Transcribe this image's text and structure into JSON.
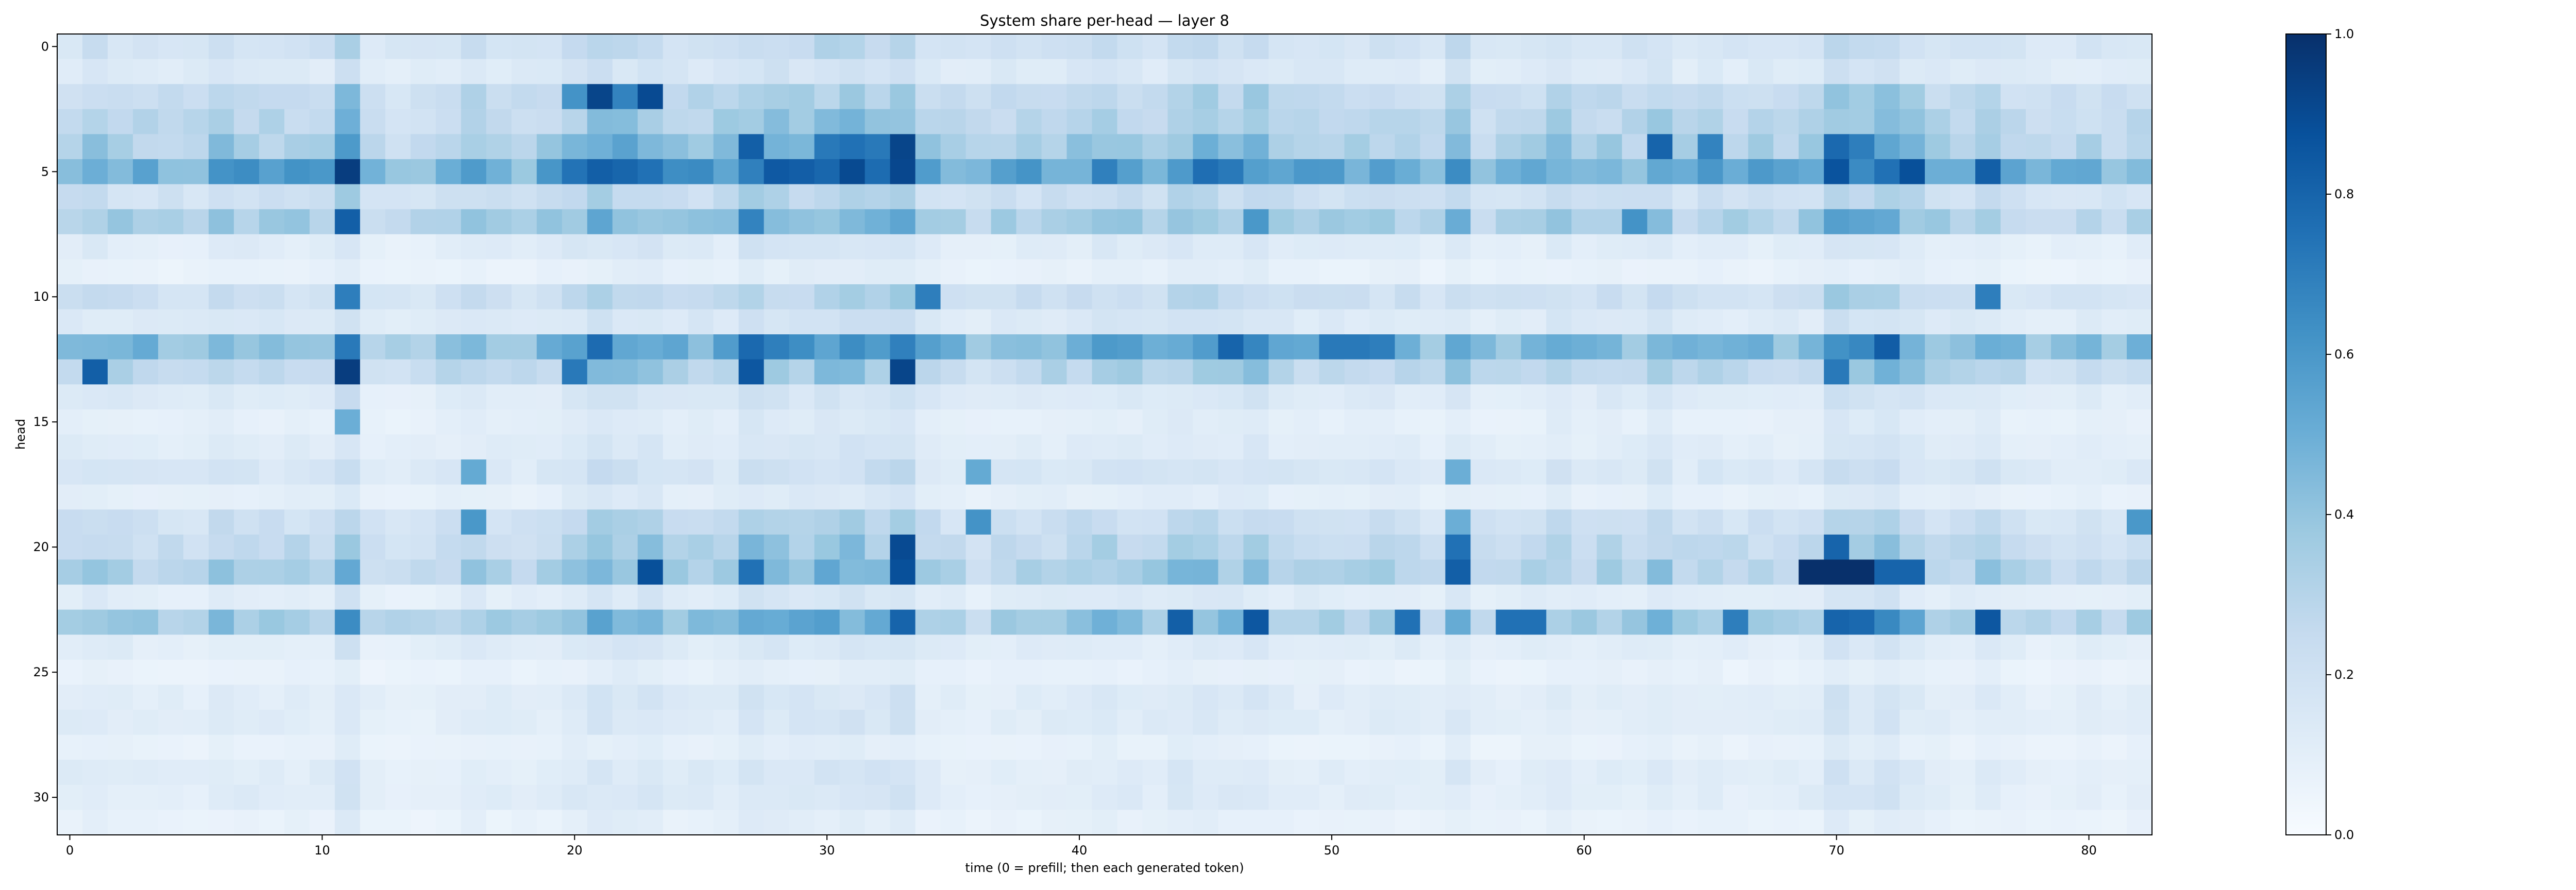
{
  "chart_data": {
    "type": "heatmap",
    "title": "System share per-head — layer 8",
    "xlabel": "time (0 = prefill; then each generated token)",
    "ylabel": "head",
    "x_range": [
      0,
      82
    ],
    "y_range": [
      0,
      31
    ],
    "x_ticks": [
      0,
      10,
      20,
      30,
      40,
      50,
      60,
      70,
      80
    ],
    "y_ticks": [
      0,
      5,
      10,
      15,
      20,
      25,
      30
    ],
    "colorbar": {
      "min": 0.0,
      "max": 1.0,
      "ticks": [
        "0.0",
        "0.2",
        "0.4",
        "0.6",
        "0.8",
        "1.0"
      ],
      "colormap": "Blues"
    },
    "head_base": [
      0.2,
      0.14,
      0.26,
      0.3,
      0.36,
      0.55,
      0.22,
      0.36,
      0.12,
      0.08,
      0.22,
      0.14,
      0.48,
      0.3,
      0.14,
      0.1,
      0.12,
      0.16,
      0.1,
      0.22,
      0.28,
      0.34,
      0.12,
      0.38,
      0.12,
      0.08,
      0.12,
      0.12,
      0.08,
      0.12,
      0.12,
      0.08
    ],
    "time_scale": [
      0.95,
      1.05,
      0.95,
      0.9,
      0.85,
      0.85,
      1.05,
      1.0,
      0.95,
      0.95,
      0.95,
      1.5,
      0.75,
      0.7,
      0.75,
      0.85,
      1.05,
      0.9,
      0.85,
      0.95,
      1.15,
      1.4,
      1.3,
      1.3,
      1.05,
      1.05,
      1.05,
      1.45,
      1.3,
      1.25,
      1.35,
      1.4,
      1.35,
      1.55,
      1.0,
      0.9,
      0.75,
      0.9,
      0.95,
      0.95,
      1.05,
      1.1,
      1.05,
      1.0,
      1.2,
      1.2,
      1.1,
      1.25,
      1.0,
      0.95,
      0.95,
      0.9,
      0.95,
      0.95,
      0.8,
      1.2,
      0.8,
      0.85,
      0.9,
      1.05,
      0.9,
      0.95,
      0.9,
      1.1,
      0.85,
      0.95,
      0.85,
      0.9,
      0.85,
      0.95,
      1.5,
      1.3,
      1.45,
      1.2,
      0.95,
      0.9,
      1.1,
      0.85,
      0.75,
      0.8,
      0.85,
      0.8,
      0.9
    ],
    "hotspots": [
      {
        "t": 21,
        "h": 2,
        "v": 0.92
      },
      {
        "t": 20,
        "h": 2,
        "v": 0.62
      },
      {
        "t": 22,
        "h": 2,
        "v": 0.68
      },
      {
        "t": 23,
        "h": 2,
        "v": 0.9
      },
      {
        "t": 33,
        "h": 4,
        "v": 0.92
      },
      {
        "t": 27,
        "h": 4,
        "v": 0.82
      },
      {
        "t": 30,
        "h": 4,
        "v": 0.72
      },
      {
        "t": 31,
        "h": 4,
        "v": 0.75
      },
      {
        "t": 32,
        "h": 4,
        "v": 0.72
      },
      {
        "t": 63,
        "h": 4,
        "v": 0.8
      },
      {
        "t": 65,
        "h": 4,
        "v": 0.68
      },
      {
        "t": 70,
        "h": 4,
        "v": 0.78
      },
      {
        "t": 71,
        "h": 4,
        "v": 0.7
      },
      {
        "t": 11,
        "h": 5,
        "v": 0.95
      },
      {
        "t": 21,
        "h": 5,
        "v": 0.82
      },
      {
        "t": 73,
        "h": 5,
        "v": 0.88
      },
      {
        "t": 72,
        "h": 5,
        "v": 0.75
      },
      {
        "t": 76,
        "h": 5,
        "v": 0.82
      },
      {
        "t": 71,
        "h": 5,
        "v": 0.65
      },
      {
        "t": 46,
        "h": 5,
        "v": 0.72
      },
      {
        "t": 11,
        "h": 7,
        "v": 0.82
      },
      {
        "t": 27,
        "h": 7,
        "v": 0.68
      },
      {
        "t": 47,
        "h": 7,
        "v": 0.6
      },
      {
        "t": 62,
        "h": 7,
        "v": 0.62
      },
      {
        "t": 11,
        "h": 10,
        "v": 0.7
      },
      {
        "t": 34,
        "h": 10,
        "v": 0.7
      },
      {
        "t": 76,
        "h": 10,
        "v": 0.7
      },
      {
        "t": 11,
        "h": 12,
        "v": 0.72
      },
      {
        "t": 46,
        "h": 12,
        "v": 0.8
      },
      {
        "t": 50,
        "h": 12,
        "v": 0.72
      },
      {
        "t": 51,
        "h": 12,
        "v": 0.72
      },
      {
        "t": 52,
        "h": 12,
        "v": 0.7
      },
      {
        "t": 11,
        "h": 13,
        "v": 0.95
      },
      {
        "t": 1,
        "h": 13,
        "v": 0.82
      },
      {
        "t": 27,
        "h": 13,
        "v": 0.85
      },
      {
        "t": 33,
        "h": 13,
        "v": 0.92
      },
      {
        "t": 20,
        "h": 13,
        "v": 0.72
      },
      {
        "t": 70,
        "h": 13,
        "v": 0.72
      },
      {
        "t": 11,
        "h": 15,
        "v": 0.5
      },
      {
        "t": 16,
        "h": 17,
        "v": 0.52
      },
      {
        "t": 36,
        "h": 17,
        "v": 0.52
      },
      {
        "t": 55,
        "h": 17,
        "v": 0.5
      },
      {
        "t": 16,
        "h": 19,
        "v": 0.6
      },
      {
        "t": 36,
        "h": 19,
        "v": 0.62
      },
      {
        "t": 55,
        "h": 19,
        "v": 0.5
      },
      {
        "t": 82,
        "h": 19,
        "v": 0.6
      },
      {
        "t": 33,
        "h": 20,
        "v": 0.9
      },
      {
        "t": 55,
        "h": 20,
        "v": 0.75
      },
      {
        "t": 70,
        "h": 20,
        "v": 0.8
      },
      {
        "t": 69,
        "h": 21,
        "v": 1.0
      },
      {
        "t": 70,
        "h": 21,
        "v": 1.0
      },
      {
        "t": 71,
        "h": 21,
        "v": 1.0
      },
      {
        "t": 72,
        "h": 21,
        "v": 0.8
      },
      {
        "t": 73,
        "h": 21,
        "v": 0.8
      },
      {
        "t": 23,
        "h": 21,
        "v": 0.88
      },
      {
        "t": 33,
        "h": 21,
        "v": 0.88
      },
      {
        "t": 27,
        "h": 21,
        "v": 0.75
      },
      {
        "t": 55,
        "h": 21,
        "v": 0.82
      },
      {
        "t": 47,
        "h": 23,
        "v": 0.85
      },
      {
        "t": 44,
        "h": 23,
        "v": 0.82
      },
      {
        "t": 33,
        "h": 23,
        "v": 0.8
      },
      {
        "t": 76,
        "h": 23,
        "v": 0.85
      },
      {
        "t": 70,
        "h": 23,
        "v": 0.8
      },
      {
        "t": 71,
        "h": 23,
        "v": 0.78
      },
      {
        "t": 53,
        "h": 23,
        "v": 0.75
      },
      {
        "t": 57,
        "h": 23,
        "v": 0.75
      },
      {
        "t": 58,
        "h": 23,
        "v": 0.75
      },
      {
        "t": 66,
        "h": 23,
        "v": 0.7
      }
    ]
  }
}
